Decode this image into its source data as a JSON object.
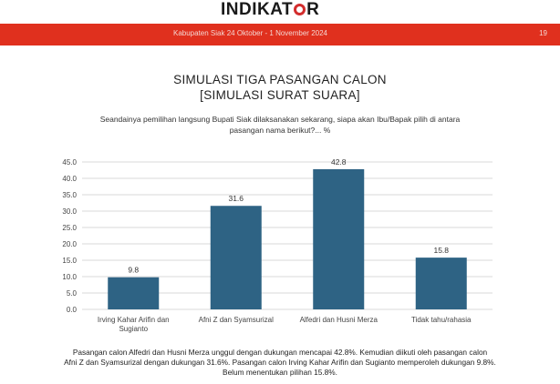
{
  "header": {
    "logo_text_1": "INDIKAT",
    "logo_text_2": "R",
    "subtitle": "Kabupaten Siak 24 Oktober - 1 November 2024",
    "page_number": "19"
  },
  "title_line1": "SIMULASI TIGA PASANGAN CALON",
  "title_line2": "[SIMULASI SURAT SUARA]",
  "question_line1": "Seandainya pemilihan langsung Bupati Siak dilaksanakan sekarang, siapa akan Ibu/Bapak pilih di antara",
  "question_line2": "pasangan nama berikut?... %",
  "footer_line1": "Pasangan calon Alfedri dan Husni Merza unggul dengan dukungan mencapai 42.8%. Kemudian diikuti oleh pasangan calon",
  "footer_line2": "Afni Z dan Syamsurizal dengan dukungan 31.6%. Pasangan calon Irving Kahar Arifin dan Sugianto memperoleh dukungan 9.8%.",
  "footer_line3": "Belum menentukan pilihan 15.8%.",
  "colors": {
    "bar": "#2e6384",
    "grid": "#d9d9d9",
    "accent": "#e0301e"
  },
  "chart_data": {
    "type": "bar",
    "categories": [
      [
        "Irving Kahar Arifin dan",
        "Sugianto"
      ],
      [
        "Afni Z dan Syamsurizal"
      ],
      [
        "Alfedri dan Husni Merza"
      ],
      [
        "Tidak tahu/rahasia"
      ]
    ],
    "values": [
      9.8,
      31.6,
      42.8,
      15.8
    ],
    "value_labels": [
      "9.8",
      "31.6",
      "42.8",
      "15.8"
    ],
    "yticks": [
      "0.0",
      "5.0",
      "10.0",
      "15.0",
      "20.0",
      "25.0",
      "30.0",
      "35.0",
      "40.0",
      "45.0"
    ],
    "ylim": [
      0,
      45
    ],
    "grid": true,
    "legend": false
  }
}
